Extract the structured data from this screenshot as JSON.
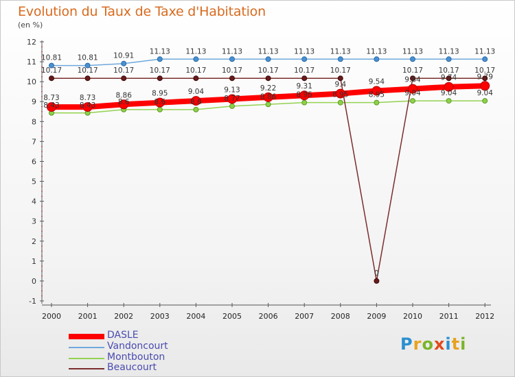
{
  "header": {
    "title": "Evolution du Taux de Taxe d'Habitation",
    "subtitle": "(en %)"
  },
  "logo": {
    "text": "Proxiti",
    "letters": [
      {
        "ch": "P",
        "color": "#2a8fd0"
      },
      {
        "ch": "r",
        "color": "#e8a21e"
      },
      {
        "ch": "o",
        "color": "#7ab52b"
      },
      {
        "ch": "x",
        "color": "#e04a1c"
      },
      {
        "ch": "i",
        "color": "#2a8fd0"
      },
      {
        "ch": "t",
        "color": "#e8a21e"
      },
      {
        "ch": "i",
        "color": "#7ab52b"
      }
    ]
  },
  "chart_data": {
    "type": "line",
    "title": "Evolution du Taux de Taxe d'Habitation",
    "ylabel": "(en %)",
    "xlabel": "",
    "x": [
      "2000",
      "2001",
      "2002",
      "2003",
      "2004",
      "2005",
      "2006",
      "2007",
      "2008",
      "2009",
      "2010",
      "2011",
      "2012"
    ],
    "ylim": [
      -1,
      12
    ],
    "yticks": [
      -1,
      0,
      1,
      2,
      3,
      4,
      5,
      6,
      7,
      8,
      9,
      10,
      11,
      12
    ],
    "grid": false,
    "legend_position": "bottom-left",
    "series": [
      {
        "name": "DASLE",
        "color": "#ff0000",
        "values": [
          8.73,
          8.73,
          8.86,
          8.95,
          9.04,
          9.13,
          9.22,
          9.31,
          9.4,
          9.54,
          9.64,
          9.74,
          9.79
        ],
        "labels": [
          "8.73",
          "8.73",
          "8.86",
          "8.95",
          "9.04",
          "9.13",
          "9.22",
          "9.31",
          "9.4",
          "9.54",
          "9.64",
          "9.74",
          "9.79"
        ]
      },
      {
        "name": "Vandoncourt",
        "color": "#6fa8dc",
        "values": [
          10.81,
          10.81,
          10.91,
          11.13,
          11.13,
          11.13,
          11.13,
          11.13,
          11.13,
          11.13,
          11.13,
          11.13,
          11.13
        ],
        "labels": [
          "10.81",
          "10.81",
          "10.91",
          "11.13",
          "11.13",
          "11.13",
          "11.13",
          "11.13",
          "11.13",
          "11.13",
          "11.13",
          "11.13",
          "11.13"
        ]
      },
      {
        "name": "Montbouton",
        "color": "#93d150",
        "values": [
          8.43,
          8.43,
          8.6,
          8.6,
          8.6,
          8.77,
          8.86,
          8.95,
          8.95,
          8.95,
          9.04,
          9.04,
          9.04
        ],
        "labels": [
          "8.43",
          "8.43",
          "8.6",
          "8.6",
          "8.6",
          "8.77",
          "8.86",
          "8.95",
          "8.95",
          "8.95",
          "9.04",
          "9.04",
          "9.04"
        ]
      },
      {
        "name": "Beaucourt",
        "color": "#7b2c2c",
        "values": [
          10.17,
          10.17,
          10.17,
          10.17,
          10.17,
          10.17,
          10.17,
          10.17,
          10.17,
          0,
          10.17,
          10.17,
          10.17
        ],
        "labels": [
          "10.17",
          "10.17",
          "10.17",
          "10.17",
          "10.17",
          "10.17",
          "10.17",
          "10.17",
          "10.17",
          "0",
          "10.17",
          "10.17",
          "10.17"
        ]
      }
    ]
  }
}
